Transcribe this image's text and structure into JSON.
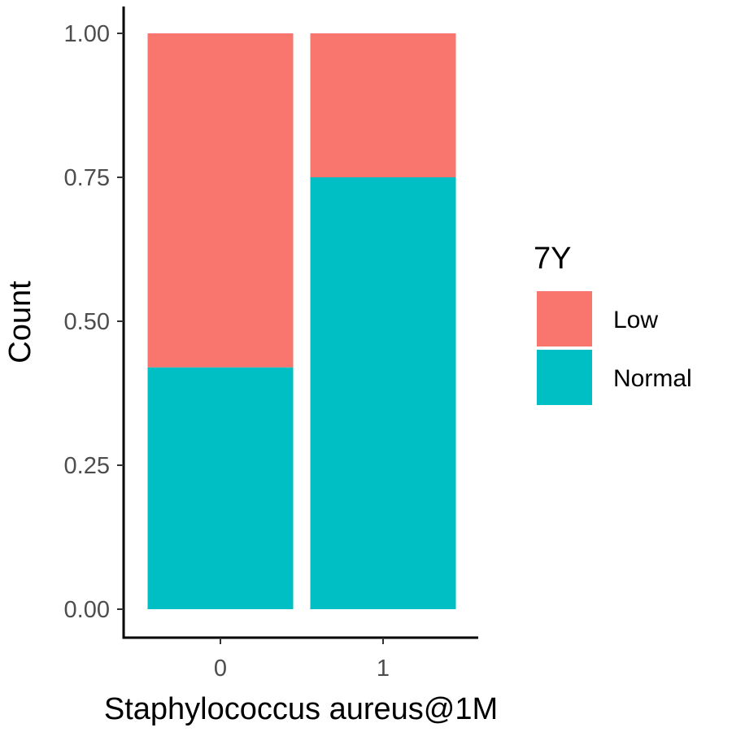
{
  "chart_data": {
    "type": "bar",
    "stacked": true,
    "categories": [
      "0",
      "1"
    ],
    "series": [
      {
        "name": "Low",
        "values": [
          0.58,
          0.25
        ],
        "color": "#F8766D"
      },
      {
        "name": "Normal",
        "values": [
          0.42,
          0.75
        ],
        "color": "#00BFC4"
      }
    ],
    "xlabel": "Staphylococcus aureus@1M",
    "ylabel": "Count",
    "ylim": [
      0,
      1
    ],
    "yticks": [
      "0.00",
      "0.25",
      "0.50",
      "0.75",
      "1.00"
    ],
    "ytick_values": [
      0,
      0.25,
      0.5,
      0.75,
      1.0
    ],
    "legend": {
      "title": "7Y",
      "placement": "right"
    },
    "grid": false
  }
}
